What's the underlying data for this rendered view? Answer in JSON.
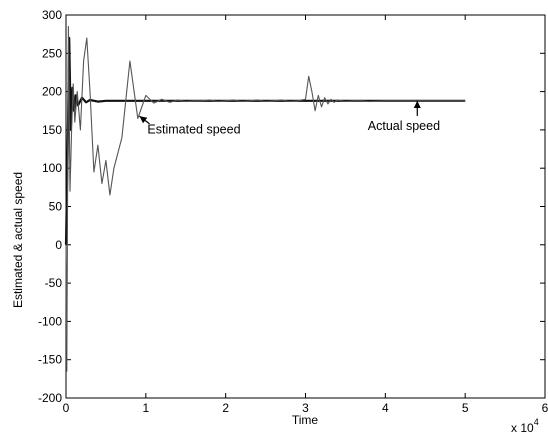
{
  "chart_data": {
    "type": "line",
    "title": "",
    "xlabel": "Time",
    "ylabel": "Estimated & actual speed",
    "x_multiplier_label": "x 10",
    "x_multiplier_exponent": "4",
    "xlim": [
      0,
      6
    ],
    "ylim": [
      -200,
      300
    ],
    "x_ticks": [
      "0",
      "1",
      "2",
      "3",
      "4",
      "5",
      "6"
    ],
    "y_ticks": [
      "-200",
      "-150",
      "-100",
      "-50",
      "0",
      "50",
      "100",
      "150",
      "200",
      "250",
      "300"
    ],
    "grid": false,
    "series": [
      {
        "name": "Actual speed",
        "x": [
          0,
          0.02,
          0.04,
          0.06,
          0.08,
          0.1,
          0.12,
          0.15,
          0.2,
          0.25,
          0.3,
          0.4,
          0.5,
          0.6,
          0.8,
          1.0,
          2.0,
          3.0,
          4.0,
          5.0
        ],
        "y": [
          0,
          120,
          270,
          150,
          205,
          175,
          195,
          182,
          192,
          186,
          189,
          187,
          188,
          188,
          188,
          188,
          188,
          188,
          188,
          188
        ]
      },
      {
        "name": "Estimated speed",
        "x": [
          0,
          0.01,
          0.02,
          0.03,
          0.05,
          0.07,
          0.09,
          0.11,
          0.14,
          0.18,
          0.22,
          0.26,
          0.3,
          0.35,
          0.4,
          0.45,
          0.5,
          0.55,
          0.6,
          0.7,
          0.8,
          0.9,
          1.0,
          1.1,
          1.2,
          1.3,
          1.4,
          1.5,
          1.6,
          1.7,
          1.8,
          1.9,
          2.0,
          2.1,
          2.2,
          2.3,
          2.4,
          2.5,
          2.6,
          2.7,
          2.8,
          2.9,
          3.0,
          3.04,
          3.08,
          3.12,
          3.16,
          3.2,
          3.24,
          3.28,
          3.32,
          3.36,
          3.4,
          3.5,
          3.6,
          3.7,
          3.8,
          4.0,
          4.5,
          5.0
        ],
        "y": [
          0,
          -165,
          70,
          285,
          70,
          150,
          210,
          160,
          200,
          150,
          240,
          270,
          200,
          95,
          130,
          80,
          110,
          65,
          100,
          140,
          240,
          165,
          195,
          185,
          190,
          186,
          189,
          187,
          188,
          188,
          189,
          187,
          188,
          189,
          187,
          188,
          189,
          187,
          188,
          189,
          187,
          188,
          190,
          220,
          200,
          175,
          195,
          180,
          192,
          184,
          190,
          186,
          189,
          187,
          188,
          188,
          187,
          188,
          188,
          188
        ]
      }
    ],
    "annotations": [
      {
        "text": "Estimated speed",
        "x": 1.02,
        "y": 145,
        "arrow_to": {
          "x": 0.92,
          "y": 168
        }
      },
      {
        "text": "Actual speed",
        "x": 3.78,
        "y": 150,
        "arrow_to": {
          "x": 4.4,
          "y": 188
        }
      }
    ]
  }
}
